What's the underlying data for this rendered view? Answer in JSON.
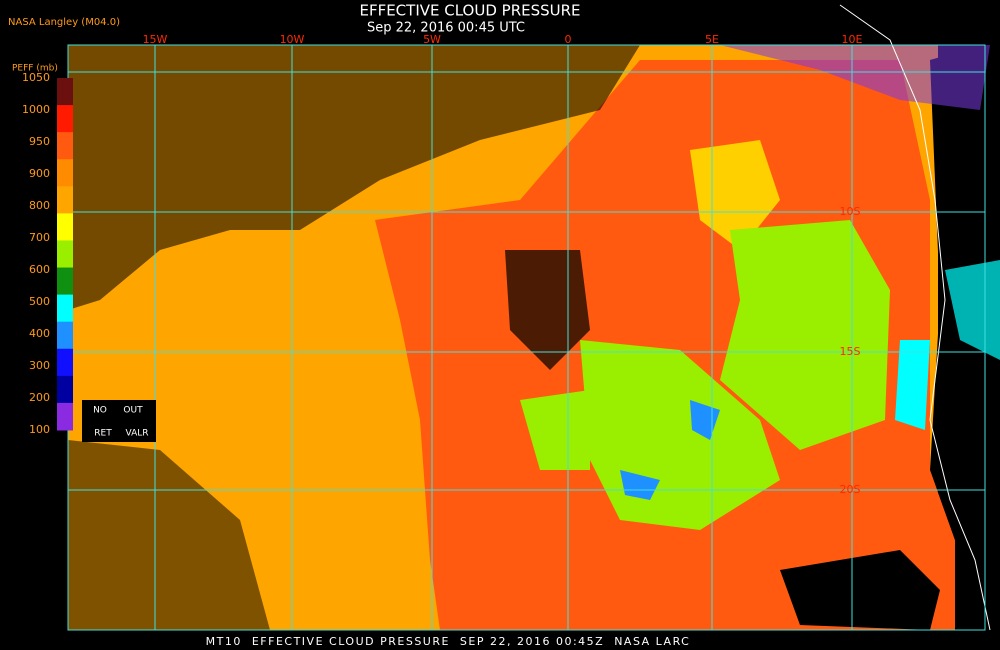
{
  "header": {
    "credit": "NASA Langley (M04.0)",
    "title": "EFFECTIVE CLOUD PRESSURE",
    "subtitle": "Sep 22, 2016 00:45 UTC"
  },
  "legend": {
    "title": "PEFF (mb)",
    "ticks": [
      1050,
      1000,
      950,
      900,
      800,
      700,
      600,
      500,
      400,
      300,
      200,
      100
    ],
    "colors": [
      "#6b0f0f",
      "#ff1a00",
      "#ff5a10",
      "#ff8c00",
      "#ffa500",
      "#ffff00",
      "#9aee00",
      "#109010",
      "#00ffff",
      "#1e90ff",
      "#1010ff",
      "#0000a0",
      "#8a2be2"
    ],
    "flags": [
      "NO",
      "OUT",
      "RET",
      "VALR"
    ]
  },
  "grid": {
    "longitudes": [
      "15W",
      "10W",
      "5W",
      "0",
      "5E",
      "10E"
    ],
    "latitudes": [
      "10S",
      "15S",
      "20S"
    ]
  },
  "footer": "MT10  EFFECTIVE CLOUD PRESSURE  SEP 22, 2016 00:45Z  NASA LARC"
}
